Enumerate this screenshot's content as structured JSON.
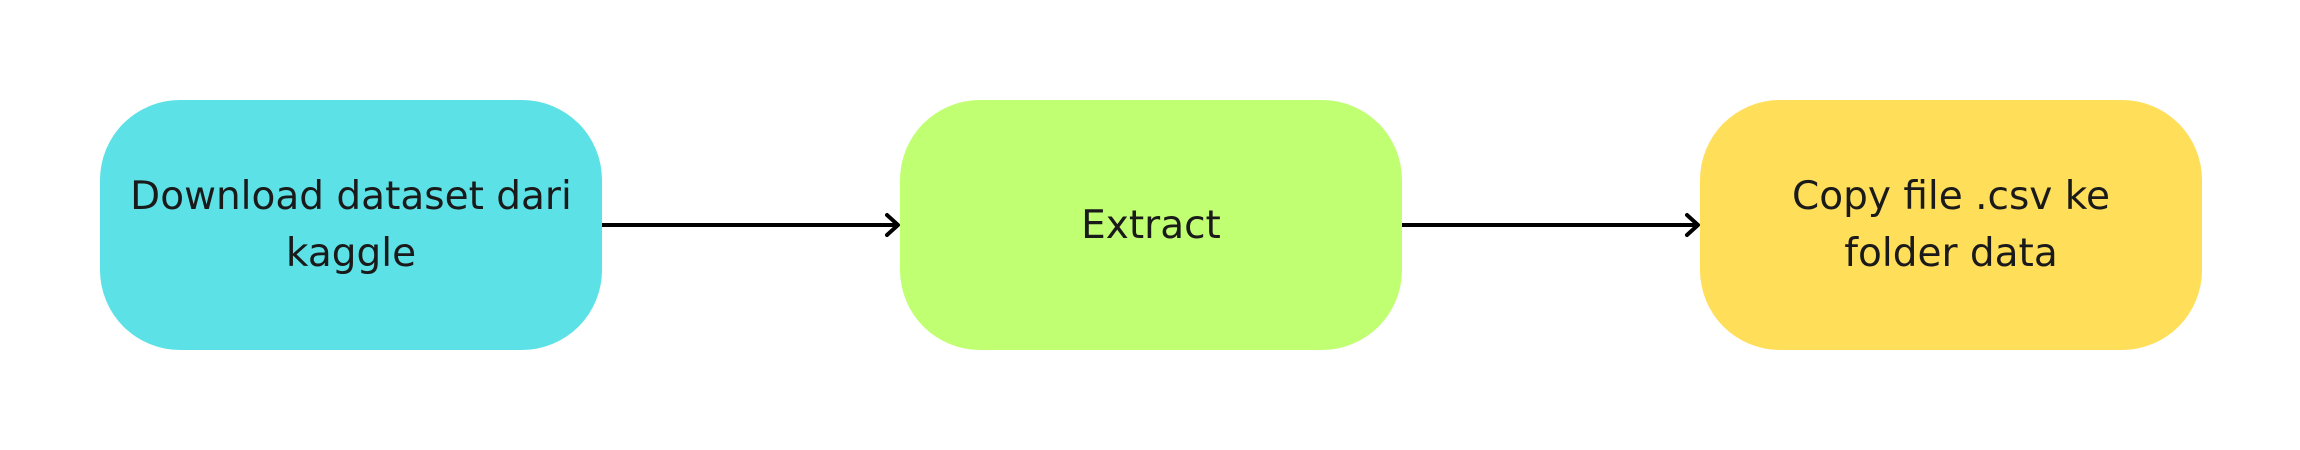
{
  "diagram": {
    "nodes": [
      {
        "id": "download",
        "label": "Download dataset dari kaggle",
        "color": "#5CE1E6"
      },
      {
        "id": "extract",
        "label": "Extract",
        "color": "#C1FF72"
      },
      {
        "id": "copy",
        "label": "Copy file .csv ke folder data",
        "color": "#FFDE59"
      }
    ],
    "edges": [
      {
        "from": "download",
        "to": "extract"
      },
      {
        "from": "extract",
        "to": "copy"
      }
    ],
    "edge_color": "#000000"
  }
}
